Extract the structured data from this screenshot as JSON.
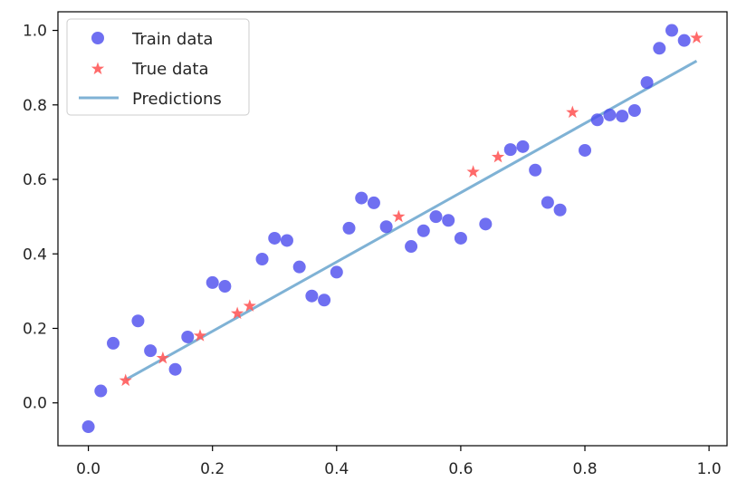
{
  "chart_data": {
    "type": "scatter",
    "title": "",
    "xlabel": "",
    "ylabel": "",
    "xlim": [
      -0.049,
      1.029
    ],
    "ylim": [
      -0.115,
      1.05
    ],
    "xticks": [
      0.0,
      0.2,
      0.4,
      0.6,
      0.8,
      1.0
    ],
    "xtick_labels": [
      "0.0",
      "0.2",
      "0.4",
      "0.6",
      "0.8",
      "1.0"
    ],
    "yticks": [
      0.0,
      0.2,
      0.4,
      0.6,
      0.8,
      1.0
    ],
    "ytick_labels": [
      "0.0",
      "0.2",
      "0.4",
      "0.6",
      "0.8",
      "1.0"
    ],
    "grid": false,
    "legend_position": "upper-left",
    "colors": {
      "train": "#4b4bed",
      "true": "#ff5a5a",
      "predictions": "#7fb2d5",
      "axis": "#000000",
      "text": "#262626"
    },
    "series": [
      {
        "name": "Train data",
        "kind": "scatter",
        "marker": "circle",
        "x": [
          0.0,
          0.02,
          0.04,
          0.08,
          0.1,
          0.14,
          0.16,
          0.2,
          0.22,
          0.28,
          0.3,
          0.32,
          0.34,
          0.36,
          0.38,
          0.4,
          0.42,
          0.44,
          0.46,
          0.48,
          0.52,
          0.54,
          0.56,
          0.58,
          0.6,
          0.64,
          0.68,
          0.7,
          0.72,
          0.74,
          0.76,
          0.8,
          0.82,
          0.84,
          0.86,
          0.88,
          0.9,
          0.92,
          0.94,
          0.96
        ],
        "y": [
          -0.064,
          0.032,
          0.16,
          0.22,
          0.14,
          0.09,
          0.177,
          0.323,
          0.313,
          0.386,
          0.442,
          0.436,
          0.365,
          0.287,
          0.276,
          0.351,
          0.469,
          0.55,
          0.537,
          0.473,
          0.42,
          0.462,
          0.5,
          0.49,
          0.442,
          0.48,
          0.68,
          0.688,
          0.625,
          0.538,
          0.518,
          0.678,
          0.76,
          0.773,
          0.77,
          0.785,
          0.86,
          0.952,
          1.0,
          0.973
        ]
      },
      {
        "name": "True data",
        "kind": "scatter",
        "marker": "star",
        "x": [
          0.06,
          0.12,
          0.18,
          0.24,
          0.26,
          0.5,
          0.62,
          0.66,
          0.78,
          0.98
        ],
        "y": [
          0.06,
          0.12,
          0.18,
          0.24,
          0.26,
          0.5,
          0.62,
          0.66,
          0.78,
          0.98
        ]
      },
      {
        "name": "Predictions",
        "kind": "line",
        "x": [
          0.06,
          0.98
        ],
        "y": [
          0.062,
          0.918
        ]
      }
    ]
  }
}
